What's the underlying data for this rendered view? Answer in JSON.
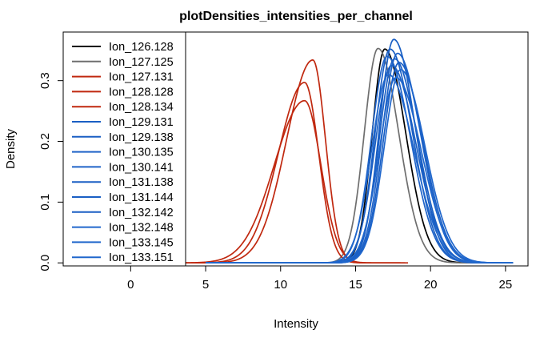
{
  "chart_data": {
    "type": "line",
    "title": "plotDensities_intensities_per_channel",
    "xlabel": "Intensity",
    "ylabel": "Density",
    "xlim": [
      -4.5,
      26.5
    ],
    "ylim": [
      -0.005,
      0.38
    ],
    "x_ticks": [
      0,
      5,
      10,
      15,
      20,
      25
    ],
    "x_tick_labels": [
      "0",
      "5",
      "10",
      "15",
      "20",
      "25"
    ],
    "y_ticks": [
      0.0,
      0.1,
      0.2,
      0.3
    ],
    "y_tick_labels": [
      "0.0",
      "0.1",
      "0.2",
      "0.3"
    ],
    "legend_position": "top-left",
    "series": [
      {
        "name": "Ion_126.128",
        "color": "#000000",
        "curve": {
          "mu": 16.95,
          "sd": 1.12,
          "peak": 0.352,
          "skew": 0.25,
          "xmin": 11.8,
          "xmax": 23.5
        }
      },
      {
        "name": "Ion_127.125",
        "color": "#6e6e6e",
        "curve": {
          "mu": 16.5,
          "sd": 1.15,
          "peak": 0.353,
          "skew": 0.2,
          "xmin": 11.5,
          "xmax": 23.5
        }
      },
      {
        "name": "Ion_127.131",
        "color": "#c0280f",
        "curve": {
          "mu": 12.15,
          "sd": 1.3,
          "peak": 0.334,
          "skew": -0.35,
          "xmin": 3.5,
          "xmax": 18.5
        }
      },
      {
        "name": "Ion_128.128",
        "color": "#c0280f",
        "curve": {
          "mu": 11.6,
          "sd": 1.35,
          "peak": 0.297,
          "skew": -0.3,
          "xmin": 3.5,
          "xmax": 18.0
        }
      },
      {
        "name": "Ion_128.134",
        "color": "#c0280f",
        "curve": {
          "mu": 11.6,
          "sd": 1.55,
          "peak": 0.267,
          "skew": -0.3,
          "xmin": 3.5,
          "xmax": 18.3
        }
      },
      {
        "name": "Ion_129.131",
        "color": "#1a5fc4",
        "curve": {
          "mu": 17.55,
          "sd": 1.2,
          "peak": 0.368,
          "skew": 0.2,
          "xmin": 5.0,
          "xmax": 25.5
        }
      },
      {
        "name": "Ion_129.138",
        "color": "#1a5fc4",
        "curve": {
          "mu": 17.3,
          "sd": 1.25,
          "peak": 0.352,
          "skew": 0.2,
          "xmin": 5.0,
          "xmax": 25.5
        }
      },
      {
        "name": "Ion_130.135",
        "color": "#1f63c8",
        "curve": {
          "mu": 17.8,
          "sd": 1.3,
          "peak": 0.345,
          "skew": 0.2,
          "xmin": 5.0,
          "xmax": 25.5
        }
      },
      {
        "name": "Ion_130.141",
        "color": "#1f63c8",
        "curve": {
          "mu": 17.1,
          "sd": 1.3,
          "peak": 0.34,
          "skew": 0.2,
          "xmin": 5.0,
          "xmax": 25.5
        }
      },
      {
        "name": "Ion_131.138",
        "color": "#1a5fc4",
        "curve": {
          "mu": 17.6,
          "sd": 1.28,
          "peak": 0.336,
          "skew": 0.2,
          "xmin": 5.0,
          "xmax": 25.5
        }
      },
      {
        "name": "Ion_131.144",
        "color": "#1a5fc4",
        "curve": {
          "mu": 17.9,
          "sd": 1.32,
          "peak": 0.33,
          "skew": 0.2,
          "xmin": 5.0,
          "xmax": 25.5
        }
      },
      {
        "name": "Ion_132.142",
        "color": "#1a5fc4",
        "curve": {
          "mu": 17.4,
          "sd": 1.35,
          "peak": 0.325,
          "skew": 0.2,
          "xmin": 5.0,
          "xmax": 25.5
        }
      },
      {
        "name": "Ion_132.148",
        "color": "#2067cc",
        "curve": {
          "mu": 18.0,
          "sd": 1.35,
          "peak": 0.318,
          "skew": 0.2,
          "xmin": 5.0,
          "xmax": 25.5
        }
      },
      {
        "name": "Ion_133.145",
        "color": "#2067cc",
        "curve": {
          "mu": 17.2,
          "sd": 1.4,
          "peak": 0.31,
          "skew": 0.2,
          "xmin": 5.0,
          "xmax": 25.5
        }
      },
      {
        "name": "Ion_133.151",
        "color": "#2067cc",
        "curve": {
          "mu": 17.7,
          "sd": 1.4,
          "peak": 0.305,
          "skew": 0.2,
          "xmin": 5.0,
          "xmax": 25.5
        }
      }
    ]
  }
}
